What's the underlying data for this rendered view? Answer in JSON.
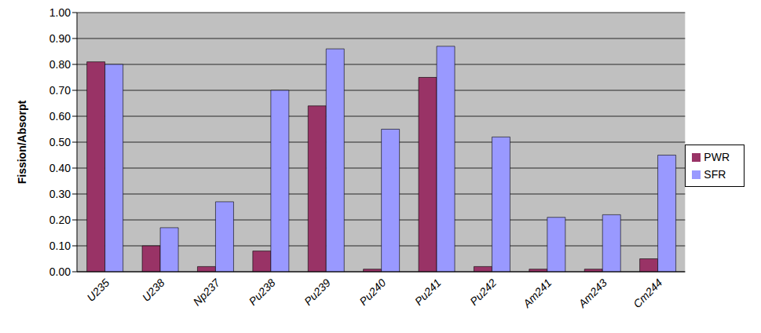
{
  "chart_data": {
    "type": "bar",
    "y_label": "Fission/Absorpt",
    "categories": [
      "U235",
      "U238",
      "Np237",
      "Pu238",
      "Pu239",
      "Pu240",
      "Pu241",
      "Pu242",
      "Am241",
      "Am243",
      "Cm244"
    ],
    "series": [
      {
        "name": "PWR",
        "color": "#993366",
        "values": [
          0.81,
          0.1,
          0.02,
          0.08,
          0.64,
          0.01,
          0.75,
          0.02,
          0.01,
          0.01,
          0.05
        ]
      },
      {
        "name": "SFR",
        "color": "#9999ff",
        "values": [
          0.8,
          0.17,
          0.27,
          0.7,
          0.86,
          0.55,
          0.87,
          0.52,
          0.21,
          0.22,
          0.45
        ]
      }
    ],
    "ylim": [
      0,
      1
    ],
    "yticks": [
      {
        "value": 0,
        "label": "0.00"
      },
      {
        "value": 0.1,
        "label": "0.10"
      },
      {
        "value": 0.2,
        "label": "0.20"
      },
      {
        "value": 0.3,
        "label": "0.30"
      },
      {
        "value": 0.4,
        "label": "0.40"
      },
      {
        "value": 0.5,
        "label": "0.50"
      },
      {
        "value": 0.6,
        "label": "0.60"
      },
      {
        "value": 0.7,
        "label": "0.70"
      },
      {
        "value": 0.8,
        "label": "0.80"
      },
      {
        "value": 0.9,
        "label": "0.90"
      },
      {
        "value": 1,
        "label": "1.00"
      }
    ],
    "grid": true,
    "legend": "right"
  }
}
